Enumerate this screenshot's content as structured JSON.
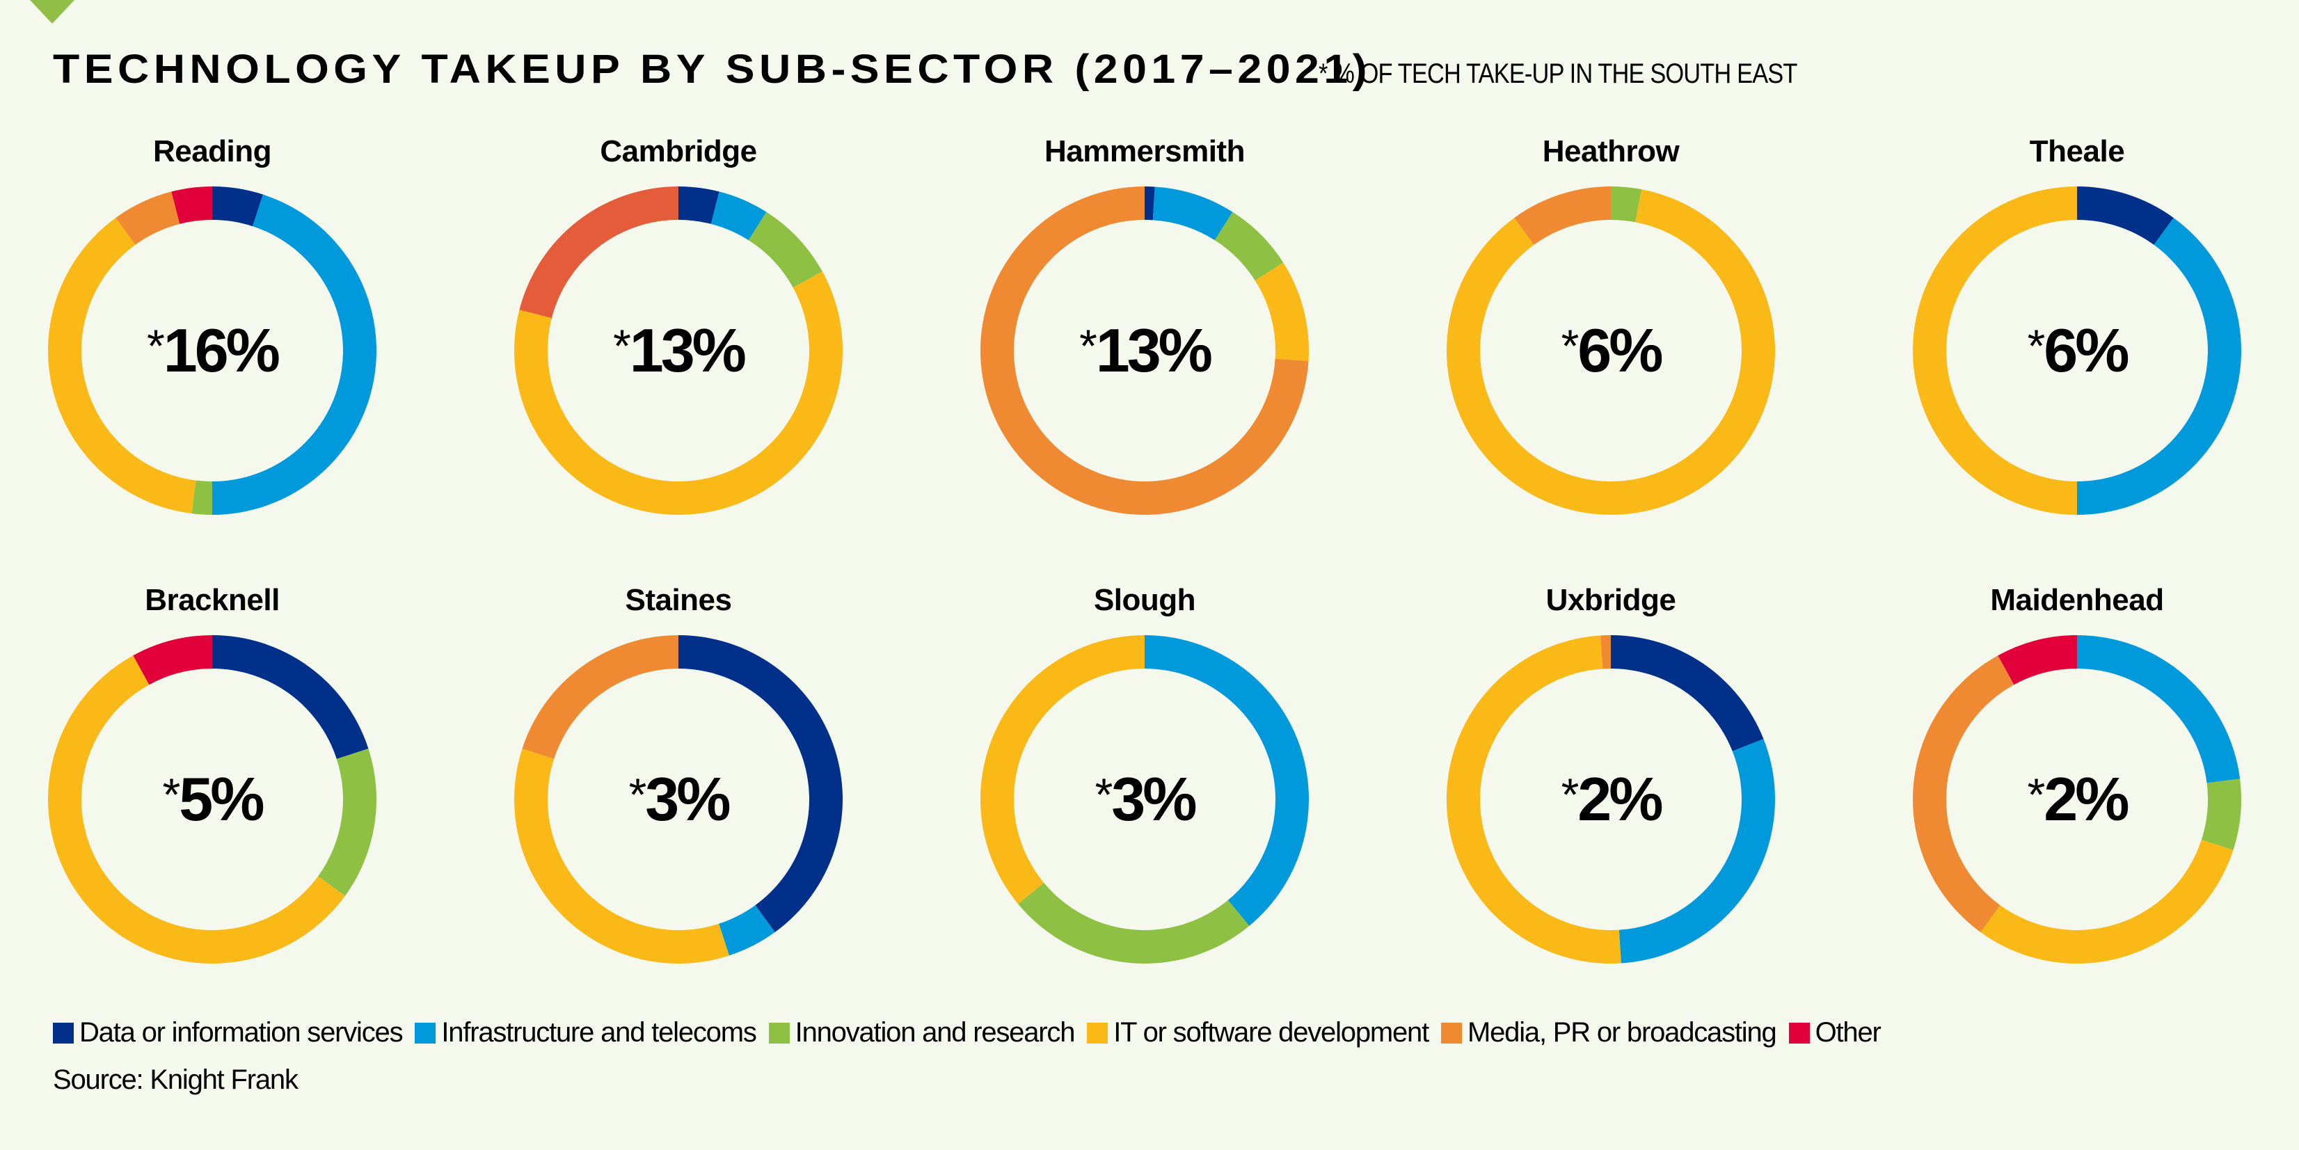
{
  "header": {
    "title": "TECHNOLOGY TAKEUP BY SUB-SECTOR (2017–2021)",
    "subtitle": "* % OF TECH TAKE-UP IN THE SOUTH EAST"
  },
  "footer": {
    "source": "Source: Knight Frank"
  },
  "chart_data": {
    "type": "pie",
    "variant": "donut-small-multiples",
    "title": "TECHNOLOGY TAKEUP BY SUB-SECTOR (2017–2021)",
    "subtitle": "* % OF TECH TAKE-UP IN THE SOUTH EAST",
    "legend_position": "bottom",
    "categories": [
      {
        "key": "data",
        "label": "Data or information services",
        "color": "#00308a"
      },
      {
        "key": "infra",
        "label": "Infrastructure and telecoms",
        "color": "#0099dc"
      },
      {
        "key": "innov",
        "label": "Innovation and research",
        "color": "#8dc043"
      },
      {
        "key": "it",
        "label": "IT or software development",
        "color": "#fbb918"
      },
      {
        "key": "media",
        "label": "Media, PR or broadcasting",
        "color": "#ef8a33"
      },
      {
        "key": "other",
        "label": "Other",
        "color": "#e2003b"
      }
    ],
    "units": "percent of sub-market take-up (estimated from slice angles)",
    "charts": [
      {
        "name": "Reading",
        "share_label": "16%",
        "slices": [
          {
            "key": "data",
            "value": 5
          },
          {
            "key": "infra",
            "value": 45
          },
          {
            "key": "innov",
            "value": 2
          },
          {
            "key": "it",
            "value": 38
          },
          {
            "key": "media",
            "value": 6
          },
          {
            "key": "other",
            "value": 4
          }
        ]
      },
      {
        "name": "Cambridge",
        "share_label": "13%",
        "slices": [
          {
            "key": "data",
            "value": 4
          },
          {
            "key": "infra",
            "value": 5
          },
          {
            "key": "innov",
            "value": 8
          },
          {
            "key": "it",
            "value": 62
          },
          {
            "key": "other",
            "value": 21,
            "color": "#e55c3b"
          }
        ]
      },
      {
        "name": "Hammersmith",
        "share_label": "13%",
        "slices": [
          {
            "key": "data",
            "value": 1
          },
          {
            "key": "infra",
            "value": 8
          },
          {
            "key": "innov",
            "value": 7
          },
          {
            "key": "it",
            "value": 10
          },
          {
            "key": "media",
            "value": 74
          }
        ]
      },
      {
        "name": "Heathrow",
        "share_label": "6%",
        "slices": [
          {
            "key": "innov",
            "value": 3
          },
          {
            "key": "it",
            "value": 87
          },
          {
            "key": "media",
            "value": 10
          }
        ]
      },
      {
        "name": "Theale",
        "share_label": "6%",
        "slices": [
          {
            "key": "data",
            "value": 10
          },
          {
            "key": "infra",
            "value": 40
          },
          {
            "key": "it",
            "value": 50
          }
        ]
      },
      {
        "name": "Bracknell",
        "share_label": "5%",
        "slices": [
          {
            "key": "data",
            "value": 20
          },
          {
            "key": "innov",
            "value": 15
          },
          {
            "key": "it",
            "value": 57
          },
          {
            "key": "other",
            "value": 8
          }
        ]
      },
      {
        "name": "Staines",
        "share_label": "3%",
        "slices": [
          {
            "key": "data",
            "value": 40
          },
          {
            "key": "infra",
            "value": 5
          },
          {
            "key": "it",
            "value": 35
          },
          {
            "key": "media",
            "value": 20
          }
        ]
      },
      {
        "name": "Slough",
        "share_label": "3%",
        "slices": [
          {
            "key": "infra",
            "value": 39
          },
          {
            "key": "innov",
            "value": 25
          },
          {
            "key": "it",
            "value": 36
          }
        ]
      },
      {
        "name": "Uxbridge",
        "share_label": "2%",
        "slices": [
          {
            "key": "data",
            "value": 19
          },
          {
            "key": "infra",
            "value": 30
          },
          {
            "key": "it",
            "value": 50
          },
          {
            "key": "media",
            "value": 1
          }
        ]
      },
      {
        "name": "Maidenhead",
        "share_label": "2%",
        "slices": [
          {
            "key": "infra",
            "value": 23
          },
          {
            "key": "innov",
            "value": 7
          },
          {
            "key": "it",
            "value": 30
          },
          {
            "key": "media",
            "value": 32
          },
          {
            "key": "other",
            "value": 8
          }
        ]
      }
    ]
  }
}
